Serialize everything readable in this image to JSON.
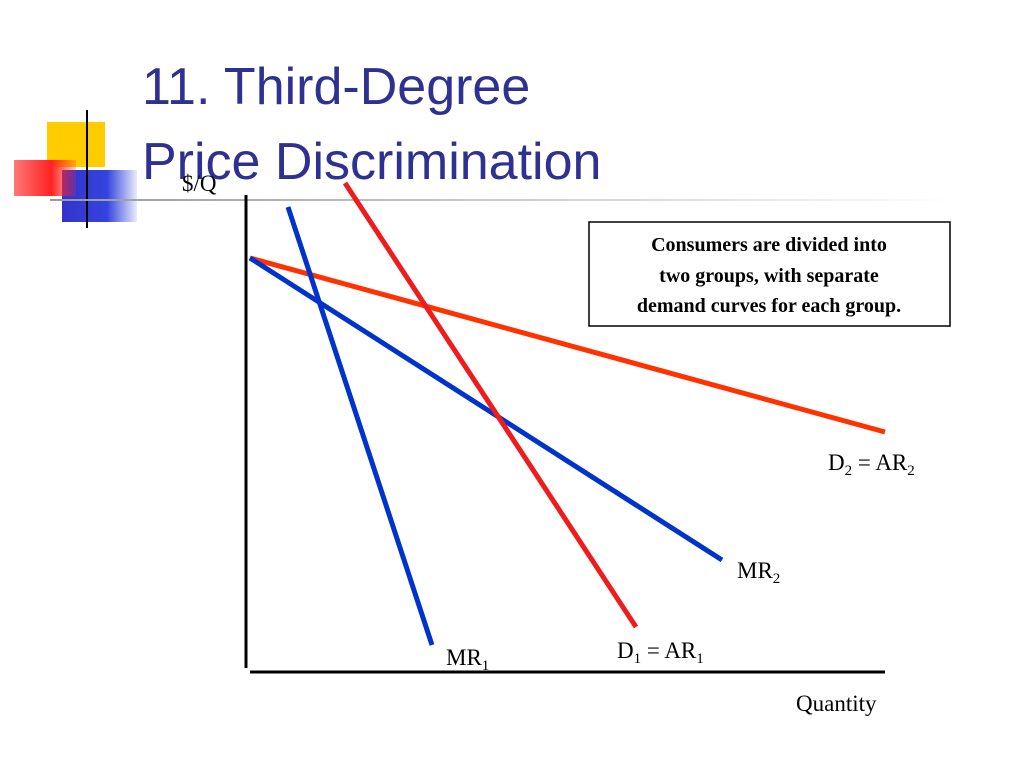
{
  "title": {
    "line1": "11. Third-Degree",
    "line2": "Price Discrimination"
  },
  "axes": {
    "y_label": "$/Q",
    "x_label": "Quantity"
  },
  "note": {
    "lines": [
      "Consumers are divided into",
      "two groups, with separate",
      "demand curves for each group."
    ]
  },
  "curves": [
    {
      "parts": [
        "D",
        "2",
        " = AR",
        "2"
      ]
    },
    {
      "parts": [
        "MR",
        "2"
      ]
    },
    {
      "parts": [
        "MR",
        "1"
      ]
    },
    {
      "parts": [
        "D",
        "1",
        " = AR",
        "1"
      ]
    }
  ]
}
